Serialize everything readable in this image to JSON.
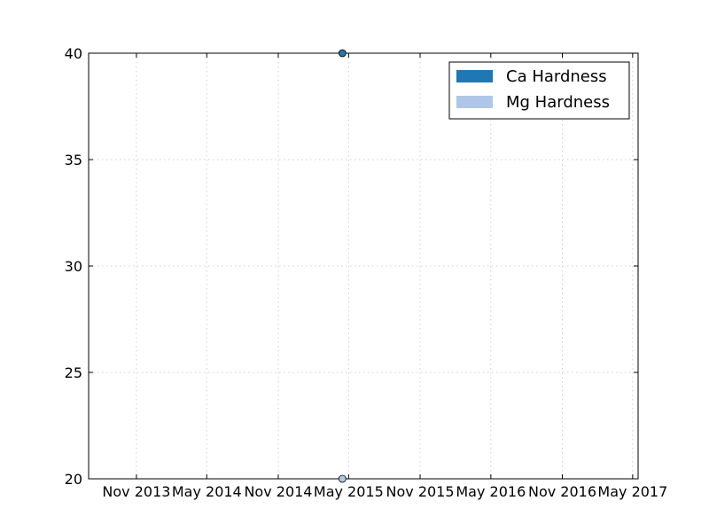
{
  "chart_data": {
    "type": "scatter",
    "title": "",
    "xlabel": "",
    "ylabel": "",
    "x_axis_type": "date",
    "xlim": [
      "2013-07-01",
      "2017-05-15"
    ],
    "ylim": [
      20,
      40
    ],
    "grid": true,
    "legend_position": "upper right",
    "x_ticks": [
      {
        "date": "2013-11-01",
        "label": "Nov 2013"
      },
      {
        "date": "2014-05-01",
        "label": "May 2014"
      },
      {
        "date": "2014-11-01",
        "label": "Nov 2014"
      },
      {
        "date": "2015-05-01",
        "label": "May 2015"
      },
      {
        "date": "2015-11-01",
        "label": "Nov 2015"
      },
      {
        "date": "2016-05-01",
        "label": "May 2016"
      },
      {
        "date": "2016-11-01",
        "label": "Nov 2016"
      },
      {
        "date": "2017-05-01",
        "label": "May 2017"
      }
    ],
    "y_ticks": [
      {
        "value": 20,
        "label": "20"
      },
      {
        "value": 25,
        "label": "25"
      },
      {
        "value": 30,
        "label": "30"
      },
      {
        "value": 35,
        "label": "35"
      },
      {
        "value": 40,
        "label": "40"
      }
    ],
    "series": [
      {
        "name": "Ca Hardness",
        "color": "#1f77b4",
        "points": [
          {
            "x": "2015-04-15",
            "y": 40
          }
        ]
      },
      {
        "name": "Mg Hardness",
        "color": "#aec7e8",
        "points": [
          {
            "x": "2015-04-15",
            "y": 20
          }
        ]
      }
    ]
  }
}
